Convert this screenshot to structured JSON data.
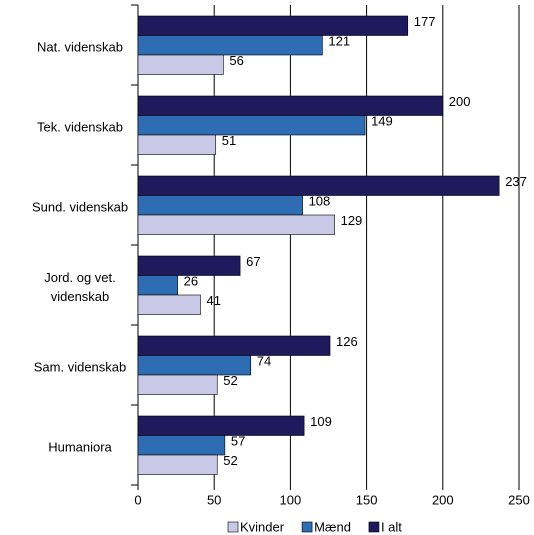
{
  "chart_data": {
    "type": "bar",
    "orientation": "horizontal",
    "categories": [
      "Nat. videnskab",
      "Tek. videnskab",
      "Sund. videnskab",
      "Jord. og vet. videnskab",
      "Sam. videnskab",
      "Humaniora"
    ],
    "series": [
      {
        "name": "Kvinder",
        "color": "#c9c8e6",
        "values": [
          56,
          51,
          129,
          41,
          52,
          52
        ]
      },
      {
        "name": "Mænd",
        "color": "#2e6db4",
        "values": [
          121,
          149,
          108,
          26,
          74,
          57
        ]
      },
      {
        "name": "I alt",
        "color": "#1f1a5e",
        "values": [
          177,
          200,
          237,
          67,
          126,
          109
        ]
      }
    ],
    "xlim": [
      0,
      250
    ],
    "xticks": [
      0,
      50,
      100,
      150,
      200,
      250
    ],
    "grid": true,
    "legend": "bottom"
  }
}
